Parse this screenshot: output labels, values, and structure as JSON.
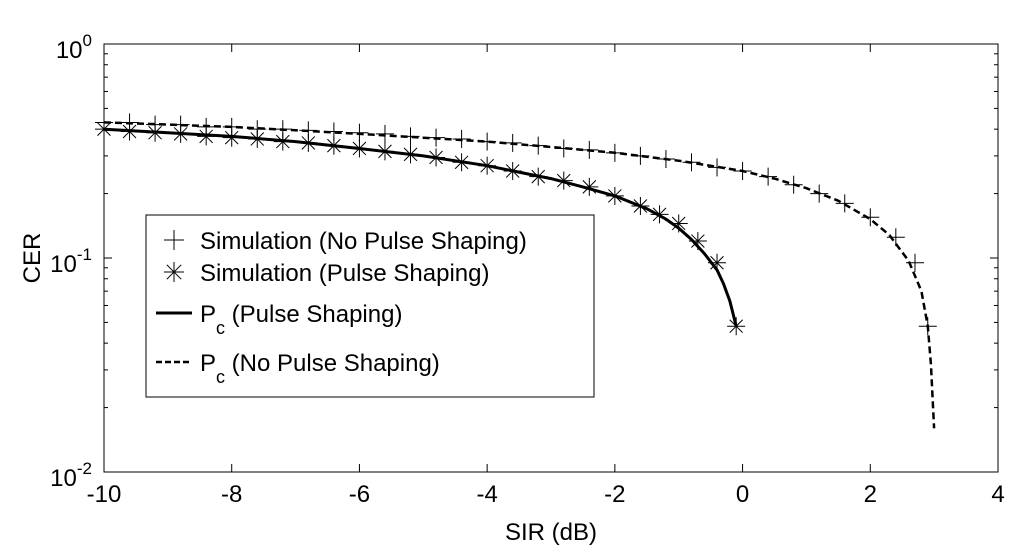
{
  "chart_data": {
    "type": "line",
    "yscale": "log",
    "xlabel": "SIR (dB)",
    "ylabel": "CER",
    "xlim": [
      -10,
      4
    ],
    "ylim": [
      0.01,
      1
    ],
    "x_ticks": [
      -10,
      -8,
      -6,
      -4,
      -2,
      0,
      2,
      4
    ],
    "x_tick_labels": [
      "-10",
      "-8",
      "-6",
      "-4",
      "-2",
      "0",
      "2",
      "4"
    ],
    "y_ticks": [
      {
        "value": 1,
        "base": "10",
        "exp": "0"
      },
      {
        "value": 0.1,
        "base": "10",
        "exp": "-1"
      },
      {
        "value": 0.01,
        "base": "10",
        "exp": "-2"
      }
    ],
    "series": [
      {
        "name": "Simulation (No Pulse Shaping)",
        "legend_main": "Simulation (No Pulse Shaping)",
        "style": "marker-plus",
        "x": [
          -10,
          -9.6,
          -9.2,
          -8.8,
          -8.4,
          -8,
          -7.6,
          -7.2,
          -6.8,
          -6.4,
          -6,
          -5.6,
          -5.2,
          -4.8,
          -4.4,
          -4,
          -3.6,
          -3.2,
          -2.8,
          -2.4,
          -2,
          -1.6,
          -1.2,
          -0.8,
          -0.4,
          0,
          0.4,
          0.8,
          1.2,
          1.6,
          2,
          2.4,
          2.7,
          2.9
        ],
        "y": [
          0.43,
          0.43,
          0.42,
          0.42,
          0.41,
          0.41,
          0.4,
          0.4,
          0.395,
          0.39,
          0.385,
          0.38,
          0.37,
          0.365,
          0.36,
          0.35,
          0.345,
          0.335,
          0.325,
          0.32,
          0.31,
          0.3,
          0.29,
          0.28,
          0.265,
          0.255,
          0.24,
          0.22,
          0.2,
          0.18,
          0.155,
          0.125,
          0.095,
          0.048
        ]
      },
      {
        "name": "Simulation (Pulse Shaping)",
        "legend_main": "Simulation (Pulse Shaping)",
        "style": "marker-star",
        "x": [
          -10,
          -9.6,
          -9.2,
          -8.8,
          -8.4,
          -8,
          -7.6,
          -7.2,
          -6.8,
          -6.4,
          -6,
          -5.6,
          -5.2,
          -4.8,
          -4.4,
          -4,
          -3.6,
          -3.2,
          -2.8,
          -2.4,
          -2,
          -1.6,
          -1.3,
          -1,
          -0.7,
          -0.4,
          -0.1
        ],
        "y": [
          0.4,
          0.39,
          0.385,
          0.38,
          0.37,
          0.365,
          0.36,
          0.35,
          0.345,
          0.335,
          0.325,
          0.315,
          0.305,
          0.295,
          0.28,
          0.27,
          0.255,
          0.24,
          0.23,
          0.215,
          0.195,
          0.175,
          0.16,
          0.145,
          0.12,
          0.095,
          0.048
        ]
      },
      {
        "name": "Pc (Pulse Shaping)",
        "legend_main": "P",
        "legend_sub": "c",
        "legend_rest": " (Pulse Shaping)",
        "style": "solid",
        "x": [
          -10,
          -9,
          -8,
          -7,
          -6,
          -5,
          -4,
          -3,
          -2.5,
          -2,
          -1.5,
          -1.2,
          -1,
          -0.8,
          -0.6,
          -0.4,
          -0.3,
          -0.2,
          -0.1
        ],
        "y": [
          0.4,
          0.385,
          0.37,
          0.35,
          0.325,
          0.3,
          0.27,
          0.235,
          0.215,
          0.195,
          0.17,
          0.152,
          0.138,
          0.122,
          0.105,
          0.088,
          0.076,
          0.063,
          0.048
        ]
      },
      {
        "name": "Pc (No Pulse Shaping)",
        "legend_main": "P",
        "legend_sub": "c",
        "legend_rest": " (No Pulse Shaping)",
        "style": "dashed",
        "x": [
          -10,
          -9,
          -8,
          -7,
          -6,
          -5,
          -4,
          -3,
          -2,
          -1,
          0,
          0.5,
          1,
          1.5,
          2,
          2.3,
          2.6,
          2.8,
          2.9,
          2.95,
          3
        ],
        "y": [
          0.43,
          0.42,
          0.41,
          0.395,
          0.38,
          0.365,
          0.35,
          0.33,
          0.31,
          0.285,
          0.255,
          0.235,
          0.212,
          0.185,
          0.152,
          0.128,
          0.097,
          0.07,
          0.048,
          0.032,
          0.016
        ]
      }
    ],
    "legend_position": "center-left"
  }
}
